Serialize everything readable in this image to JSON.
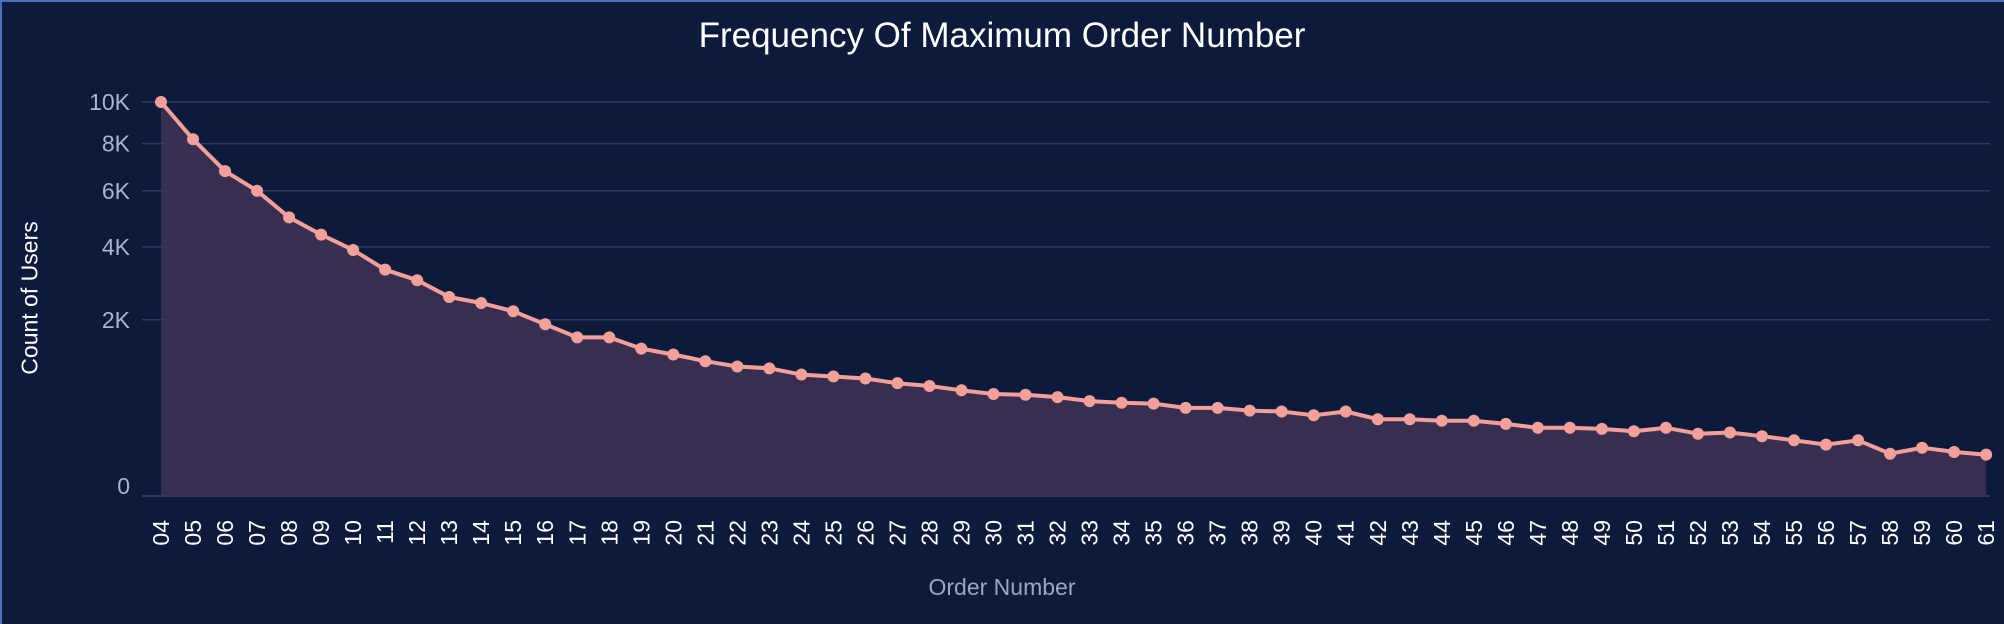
{
  "chart_data": {
    "type": "area",
    "title": "Frequency Of Maximum Order Number",
    "xlabel": "Order Number",
    "ylabel": "Count of Users",
    "y_scale": "sqrt",
    "ylim": [
      0,
      10000
    ],
    "y_ticks": [
      {
        "value": 0,
        "label": "0"
      },
      {
        "value": 2000,
        "label": "2K"
      },
      {
        "value": 4000,
        "label": "4K"
      },
      {
        "value": 6000,
        "label": "6K"
      },
      {
        "value": 8000,
        "label": "8K"
      },
      {
        "value": 10000,
        "label": "10K"
      }
    ],
    "grid": true,
    "legend": "none",
    "colors": {
      "line": "#f4a09a",
      "fill": "#3d3152",
      "grid": "#2b3a5e",
      "background": "#0c1a3b"
    },
    "categories": [
      "04",
      "05",
      "06",
      "07",
      "08",
      "09",
      "10",
      "11",
      "12",
      "13",
      "14",
      "15",
      "16",
      "17",
      "18",
      "19",
      "20",
      "21",
      "22",
      "23",
      "24",
      "25",
      "26",
      "27",
      "28",
      "29",
      "30",
      "31",
      "32",
      "33",
      "34",
      "35",
      "36",
      "37",
      "38",
      "39",
      "40",
      "41",
      "42",
      "43",
      "44",
      "45",
      "46",
      "47",
      "48",
      "49",
      "50",
      "51",
      "52",
      "53",
      "54",
      "55",
      "56",
      "57",
      "58",
      "59",
      "60",
      "61"
    ],
    "values": [
      10000,
      8200,
      6800,
      6000,
      5000,
      4400,
      3900,
      3300,
      3000,
      2550,
      2400,
      2200,
      1900,
      1620,
      1620,
      1400,
      1290,
      1170,
      1080,
      1050,
      950,
      920,
      890,
      820,
      780,
      720,
      670,
      660,
      630,
      580,
      560,
      550,
      500,
      500,
      470,
      460,
      420,
      460,
      380,
      380,
      365,
      365,
      335,
      300,
      300,
      290,
      270,
      300,
      250,
      260,
      230,
      200,
      170,
      200,
      115,
      150,
      125,
      110
    ]
  }
}
